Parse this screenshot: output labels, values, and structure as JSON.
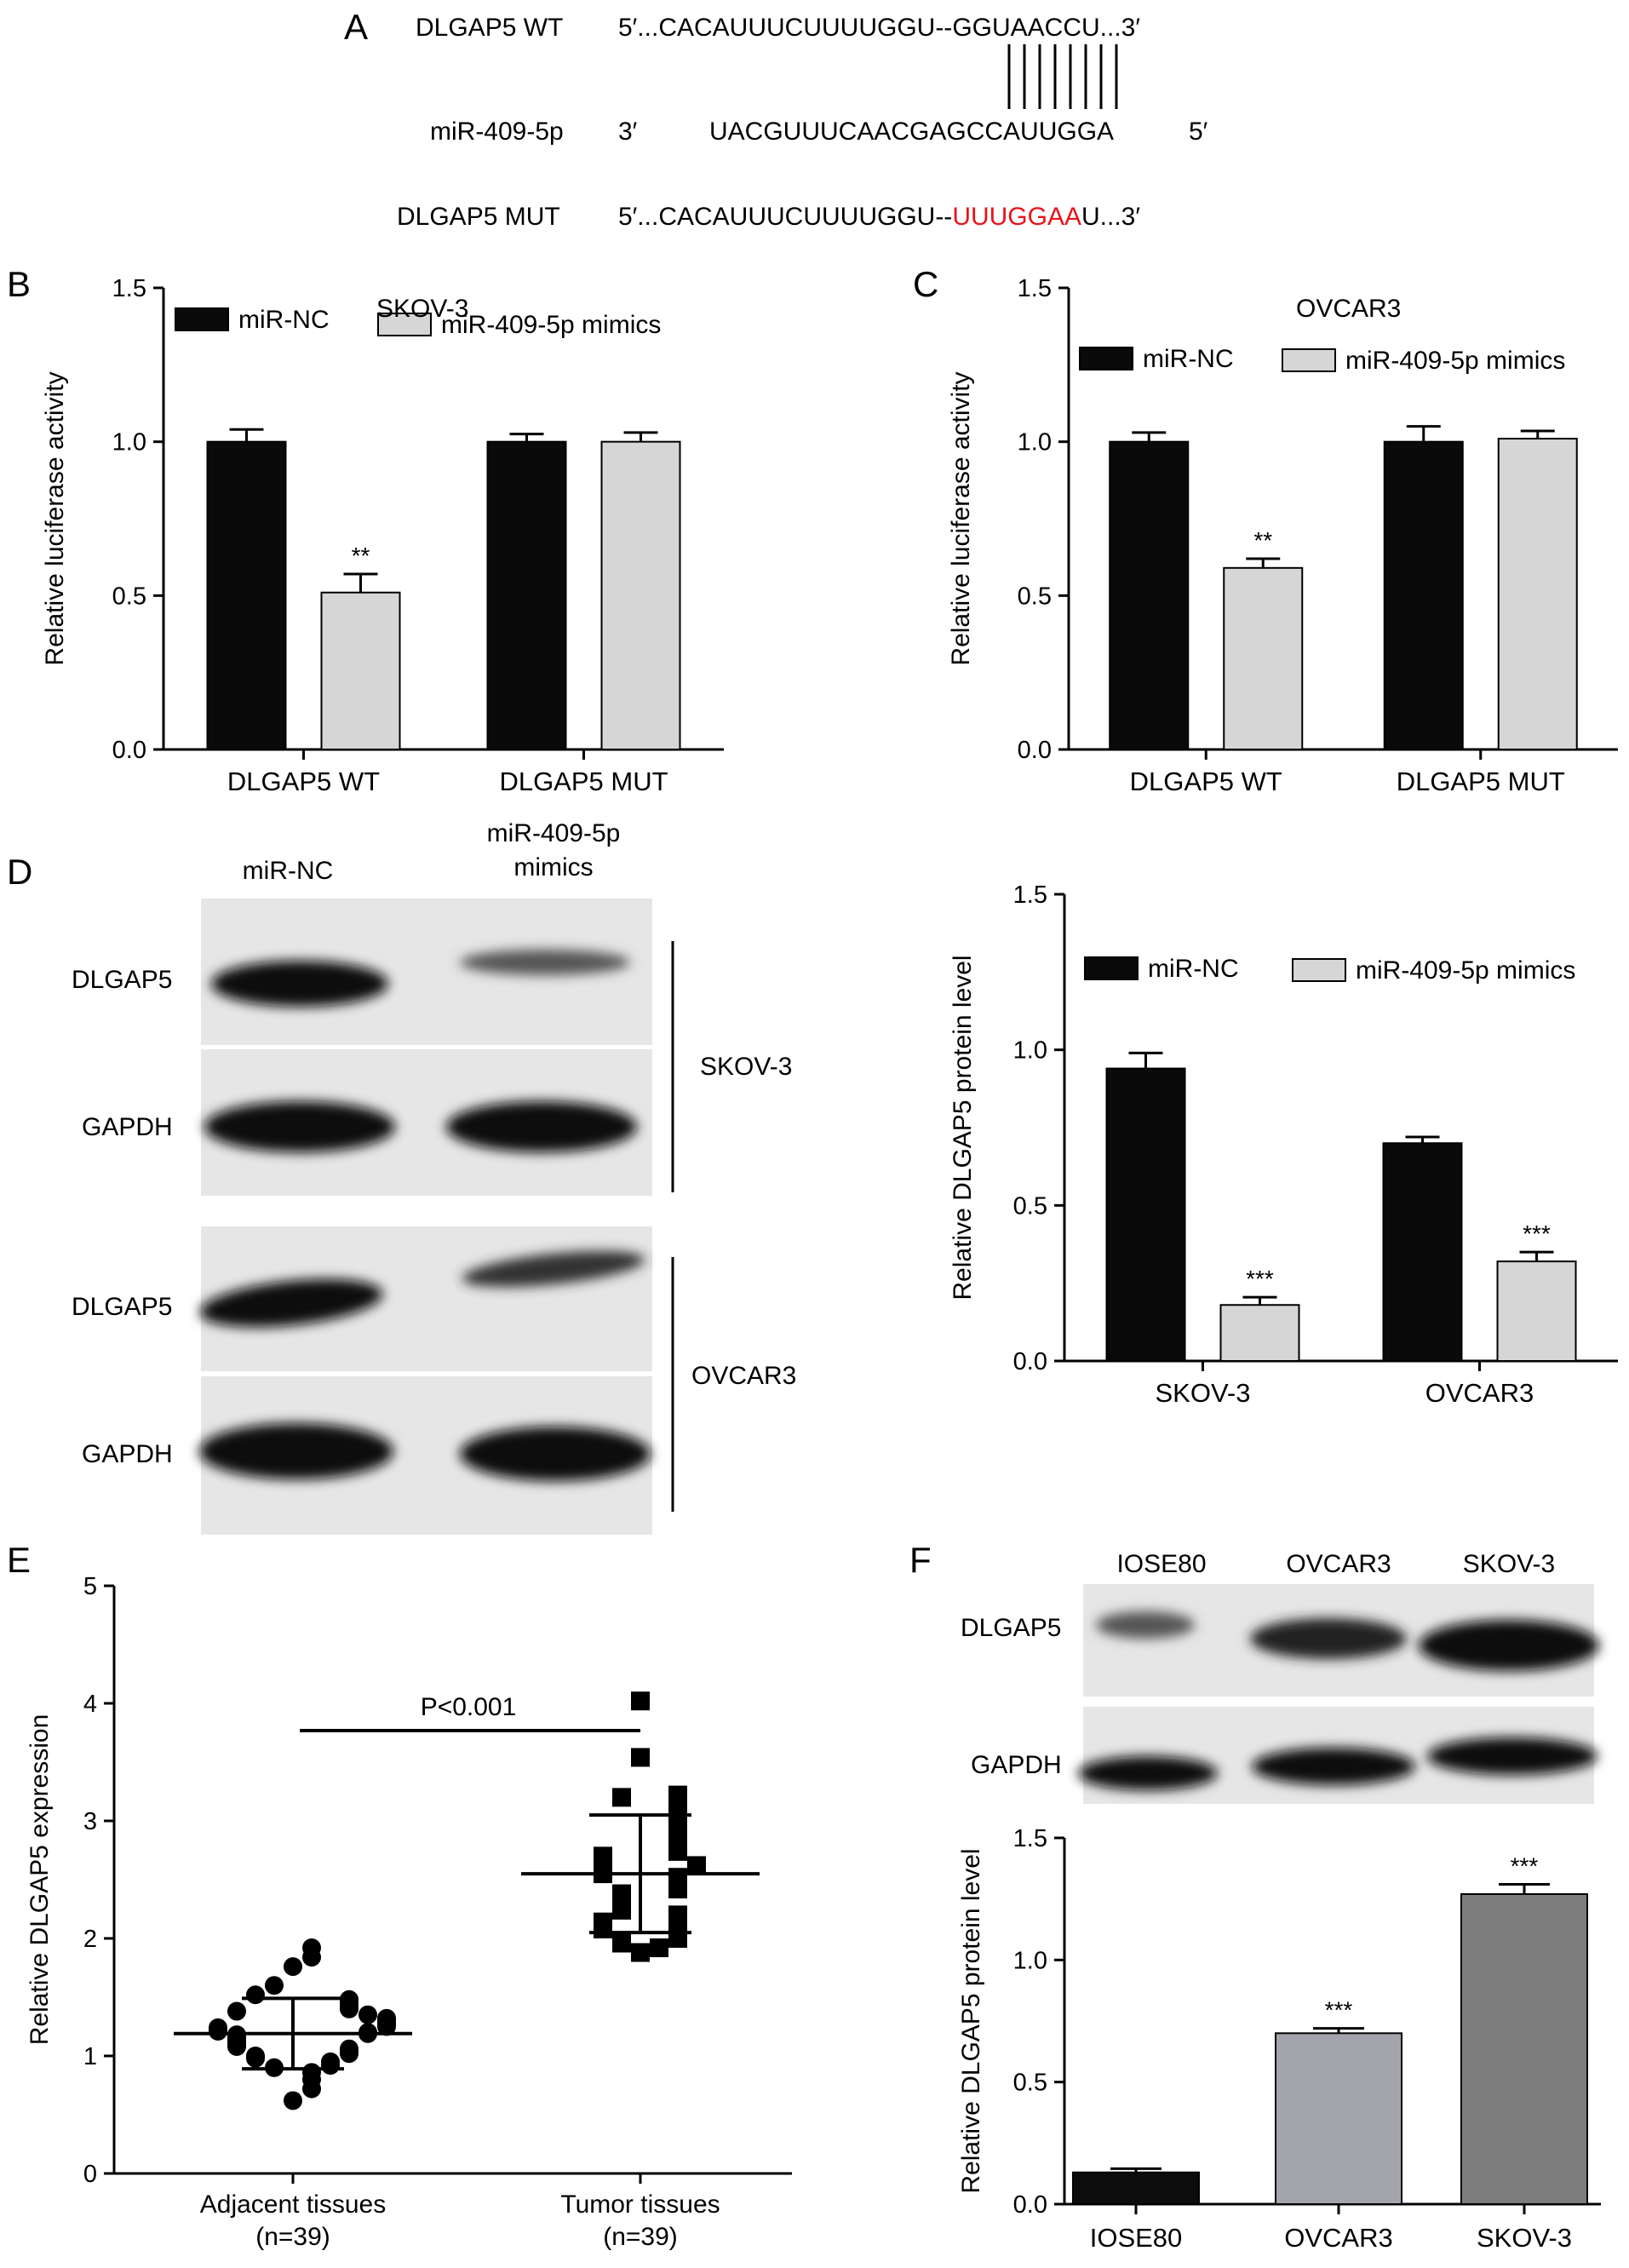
{
  "colors": {
    "black": "#000000",
    "miR_NC": "#0a0a0a",
    "mimics": "#d6d6d6",
    "mutant_red": "#e8131b",
    "blot_bg": "#e6e6e6",
    "band": "#111111",
    "IOSE80": "#0c0c0c",
    "OVCAR3": "#a4a4ad",
    "SKOV3": "#7d7d7d"
  },
  "panel_a": {
    "letter": "A",
    "rows": [
      {
        "label": "DLGAP5 WT",
        "prefix": "5′...CACAUUUCUUUUGGU--",
        "core": "GGUAACCU",
        "suffix": "...3′",
        "core_red": false
      },
      {
        "label": "miR-409-5p",
        "prefix": "3′",
        "core": "UACGUUUCAACGAGCCAUUGGA",
        "suffix": "5′",
        "core_red": false
      },
      {
        "label": "DLGAP5 MUT",
        "prefix": "5′...CACAUUUCUUUUGGU--",
        "core": "UUUGGAA",
        "suffix": "U...3′",
        "core_red": true
      }
    ]
  },
  "panel_b": {
    "letter": "B"
  },
  "panel_c": {
    "letter": "C"
  },
  "panel_d": {
    "letter": "D",
    "lane_labels": [
      "miR-NC",
      "miR-409-5p",
      "mimics"
    ],
    "row_labels": [
      "DLGAP5",
      "GAPDH",
      "DLGAP5",
      "GAPDH"
    ],
    "group_labels": [
      "SKOV-3",
      "OVCAR3"
    ]
  },
  "panel_e": {
    "letter": "E"
  },
  "panel_f": {
    "letter": "F",
    "lane_labels": [
      "IOSE80",
      "OVCAR3",
      "SKOV-3"
    ],
    "row_labels": [
      "DLGAP5",
      "GAPDH"
    ]
  },
  "chart_data": [
    {
      "id": "B",
      "type": "bar",
      "title": "SKOV-3",
      "xlabel": "",
      "ylabel": "Relative luciferase activity",
      "ylim": [
        0,
        1.5
      ],
      "yticks": [
        "0.0",
        "0.5",
        "1.0",
        "1.5"
      ],
      "categories": [
        "DLGAP5 WT",
        "DLGAP5 MUT"
      ],
      "series": [
        {
          "name": "miR-NC",
          "values": [
            1.0,
            1.0
          ],
          "errors": [
            0.04,
            0.025
          ],
          "sig": [
            "",
            ""
          ]
        },
        {
          "name": "miR-409-5p mimics",
          "values": [
            0.51,
            1.0
          ],
          "errors": [
            0.06,
            0.03
          ],
          "sig": [
            "**",
            ""
          ]
        }
      ],
      "legend": "top"
    },
    {
      "id": "C",
      "type": "bar",
      "title": "OVCAR3",
      "xlabel": "",
      "ylabel": "Relative luciferase activity",
      "ylim": [
        0,
        1.5
      ],
      "yticks": [
        "0.0",
        "0.5",
        "1.0",
        "1.5"
      ],
      "categories": [
        "DLGAP5 WT",
        "DLGAP5 MUT"
      ],
      "series": [
        {
          "name": "miR-NC",
          "values": [
            1.0,
            1.0
          ],
          "errors": [
            0.03,
            0.05
          ],
          "sig": [
            "",
            ""
          ]
        },
        {
          "name": "miR-409-5p mimics",
          "values": [
            0.59,
            1.01
          ],
          "errors": [
            0.03,
            0.025
          ],
          "sig": [
            "**",
            ""
          ]
        }
      ],
      "legend": "top"
    },
    {
      "id": "D",
      "type": "bar",
      "title": "",
      "xlabel": "",
      "ylabel": "Relative DLGAP5 protein level",
      "ylim": [
        0,
        1.5
      ],
      "yticks": [
        "0.0",
        "0.5",
        "1.0",
        "1.5"
      ],
      "categories": [
        "SKOV-3",
        "OVCAR3"
      ],
      "series": [
        {
          "name": "miR-NC",
          "values": [
            0.94,
            0.7
          ],
          "errors": [
            0.05,
            0.02
          ],
          "sig": [
            "",
            ""
          ]
        },
        {
          "name": "miR-409-5p mimics",
          "values": [
            0.18,
            0.32
          ],
          "errors": [
            0.025,
            0.03
          ],
          "sig": [
            "***",
            "***"
          ]
        }
      ],
      "legend": "top"
    },
    {
      "id": "E",
      "type": "scatter",
      "xlabel": "",
      "ylabel": "Relative DLGAP5 expression",
      "ylim": [
        0,
        5
      ],
      "yticks": [
        "0",
        "1",
        "2",
        "3",
        "4",
        "5"
      ],
      "groups": [
        {
          "label": "Adjacent tissues",
          "n_label": "(n=39)",
          "mean": 1.19,
          "sd": 0.3,
          "values": [
            0.62,
            0.72,
            0.8,
            0.86,
            0.9,
            0.92,
            0.95,
            0.98,
            1.0,
            1.02,
            1.04,
            1.06,
            1.08,
            1.1,
            1.12,
            1.14,
            1.16,
            1.18,
            1.19,
            1.2,
            1.21,
            1.22,
            1.24,
            1.25,
            1.26,
            1.28,
            1.3,
            1.32,
            1.35,
            1.38,
            1.4,
            1.42,
            1.45,
            1.48,
            1.52,
            1.6,
            1.76,
            1.84,
            1.92
          ]
        },
        {
          "label": "Tumor tissues",
          "n_label": "(n=39)",
          "mean": 2.55,
          "sd": 0.5,
          "values": [
            1.88,
            1.92,
            1.96,
            2.0,
            2.04,
            2.06,
            2.08,
            2.1,
            2.14,
            2.2,
            2.24,
            2.3,
            2.34,
            2.38,
            2.42,
            2.46,
            2.5,
            2.52,
            2.55,
            2.58,
            2.6,
            2.62,
            2.66,
            2.7,
            2.74,
            2.78,
            2.82,
            2.86,
            2.9,
            2.94,
            2.98,
            3.02,
            3.06,
            3.1,
            3.14,
            3.2,
            3.22,
            3.54,
            4.02
          ]
        }
      ],
      "annotation": "P<0.001"
    },
    {
      "id": "F",
      "type": "bar",
      "xlabel": "",
      "ylabel": "Relative DLGAP5 protein level",
      "ylim": [
        0,
        1.5
      ],
      "yticks": [
        "0.0",
        "0.5",
        "1.0",
        "1.5"
      ],
      "categories": [
        "IOSE80",
        "OVCAR3",
        "SKOV-3"
      ],
      "values": [
        0.13,
        0.7,
        1.27
      ],
      "errors": [
        0.015,
        0.02,
        0.04
      ],
      "sig": [
        "",
        "***",
        "***"
      ]
    }
  ]
}
